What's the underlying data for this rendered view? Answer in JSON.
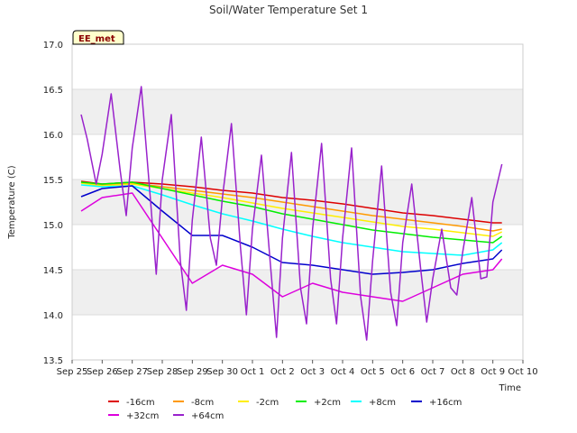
{
  "chart_data": {
    "type": "line",
    "title": "Soil/Water Temperature Set 1",
    "xlabel": "Time",
    "ylabel": "Temperature (C)",
    "station_label": "EE_met",
    "ylim": [
      13.5,
      17.0
    ],
    "xlim": [
      0,
      15
    ],
    "y_ticks": [
      "13.5",
      "14.0",
      "14.5",
      "15.0",
      "15.5",
      "16.0",
      "16.5",
      "17.0"
    ],
    "x_ticks": [
      "Sep 25",
      "Sep 26",
      "Sep 27",
      "Sep 28",
      "Sep 29",
      "Sep 30",
      "Oct 1",
      "Oct 2",
      "Oct 3",
      "Oct 4",
      "Oct 5",
      "Oct 6",
      "Oct 7",
      "Oct 8",
      "Oct 9",
      "Oct 10"
    ],
    "grid": "horizontal bands",
    "legend_position": "bottom",
    "series": [
      {
        "name": "-16cm",
        "color": "#dd0000",
        "x": [
          0.3,
          1,
          2,
          3,
          4,
          5,
          6,
          7,
          8,
          9,
          10,
          11,
          12,
          13,
          14,
          14.3
        ],
        "y": [
          15.48,
          15.45,
          15.47,
          15.45,
          15.42,
          15.38,
          15.35,
          15.3,
          15.27,
          15.23,
          15.18,
          15.13,
          15.1,
          15.06,
          15.02,
          15.02
        ]
      },
      {
        "name": "-8cm",
        "color": "#ff9900",
        "x": [
          0.3,
          1,
          2,
          3,
          4,
          5,
          6,
          7,
          8,
          9,
          10,
          11,
          12,
          13,
          14,
          14.3
        ],
        "y": [
          15.47,
          15.44,
          15.46,
          15.42,
          15.38,
          15.34,
          15.3,
          15.25,
          15.2,
          15.15,
          15.1,
          15.06,
          15.02,
          14.98,
          14.93,
          14.95
        ]
      },
      {
        "name": "-2cm",
        "color": "#ffee00",
        "x": [
          0.3,
          1,
          2,
          3,
          4,
          5,
          6,
          7,
          8,
          9,
          10,
          11,
          12,
          13,
          14,
          14.3
        ],
        "y": [
          15.46,
          15.43,
          15.45,
          15.4,
          15.35,
          15.3,
          15.24,
          15.18,
          15.13,
          15.08,
          15.03,
          14.98,
          14.95,
          14.91,
          14.87,
          14.92
        ]
      },
      {
        "name": "+2cm",
        "color": "#00ee00",
        "x": [
          0.3,
          1,
          2,
          3,
          4,
          5,
          6,
          7,
          8,
          9,
          10,
          11,
          12,
          13,
          14,
          14.3
        ],
        "y": [
          15.47,
          15.45,
          15.47,
          15.4,
          15.33,
          15.26,
          15.2,
          15.12,
          15.06,
          15.0,
          14.94,
          14.9,
          14.86,
          14.83,
          14.8,
          14.87
        ]
      },
      {
        "name": "+8cm",
        "color": "#00ffff",
        "x": [
          0.3,
          1,
          2,
          3,
          4,
          5,
          6,
          7,
          8,
          9,
          10,
          11,
          12,
          13,
          14,
          14.3
        ],
        "y": [
          15.44,
          15.42,
          15.43,
          15.33,
          15.22,
          15.12,
          15.04,
          14.95,
          14.87,
          14.8,
          14.75,
          14.7,
          14.68,
          14.66,
          14.72,
          14.8
        ]
      },
      {
        "name": "+16cm",
        "color": "#0000cc",
        "x": [
          0.3,
          1,
          2,
          3,
          4,
          5,
          6,
          7,
          8,
          9,
          10,
          11,
          12,
          13,
          14,
          14.3
        ],
        "y": [
          15.31,
          15.4,
          15.43,
          15.15,
          14.88,
          14.88,
          14.75,
          14.58,
          14.55,
          14.5,
          14.45,
          14.47,
          14.5,
          14.57,
          14.62,
          14.72
        ]
      },
      {
        "name": "+32cm",
        "color": "#dd00dd",
        "x": [
          0.3,
          1,
          2,
          3,
          4,
          5,
          6,
          7,
          8,
          9,
          10,
          11,
          12,
          13,
          14,
          14.3
        ],
        "y": [
          15.15,
          15.3,
          15.35,
          14.85,
          14.35,
          14.55,
          14.45,
          14.2,
          14.35,
          14.25,
          14.2,
          14.15,
          14.3,
          14.45,
          14.5,
          14.62
        ]
      },
      {
        "name": "+64cm",
        "color": "#9922cc",
        "x": [
          0.3,
          0.5,
          0.8,
          1.0,
          1.3,
          1.6,
          1.8,
          2.0,
          2.3,
          2.6,
          2.8,
          3.0,
          3.3,
          3.6,
          3.8,
          4.0,
          4.3,
          4.6,
          4.8,
          5.0,
          5.3,
          5.6,
          5.8,
          6.0,
          6.3,
          6.6,
          6.8,
          7.0,
          7.3,
          7.6,
          7.8,
          8.0,
          8.3,
          8.6,
          8.8,
          9.0,
          9.3,
          9.6,
          9.8,
          10.0,
          10.3,
          10.6,
          10.8,
          11.0,
          11.3,
          11.6,
          11.8,
          12.0,
          12.3,
          12.6,
          12.8,
          13.0,
          13.3,
          13.6,
          13.8,
          14.0,
          14.3
        ],
        "y": [
          16.22,
          15.95,
          15.45,
          15.78,
          16.45,
          15.6,
          15.1,
          15.85,
          16.53,
          15.3,
          14.45,
          15.5,
          16.22,
          14.6,
          14.05,
          15.05,
          15.97,
          14.85,
          14.55,
          15.3,
          16.12,
          14.75,
          14.0,
          14.95,
          15.77,
          14.55,
          13.75,
          14.85,
          15.8,
          14.3,
          13.9,
          14.95,
          15.9,
          14.4,
          13.9,
          14.85,
          15.85,
          14.2,
          13.72,
          14.6,
          15.65,
          14.25,
          13.88,
          14.8,
          15.45,
          14.5,
          13.92,
          14.4,
          14.95,
          14.3,
          14.22,
          14.7,
          15.3,
          14.4,
          14.42,
          15.25,
          15.67
        ]
      }
    ]
  }
}
